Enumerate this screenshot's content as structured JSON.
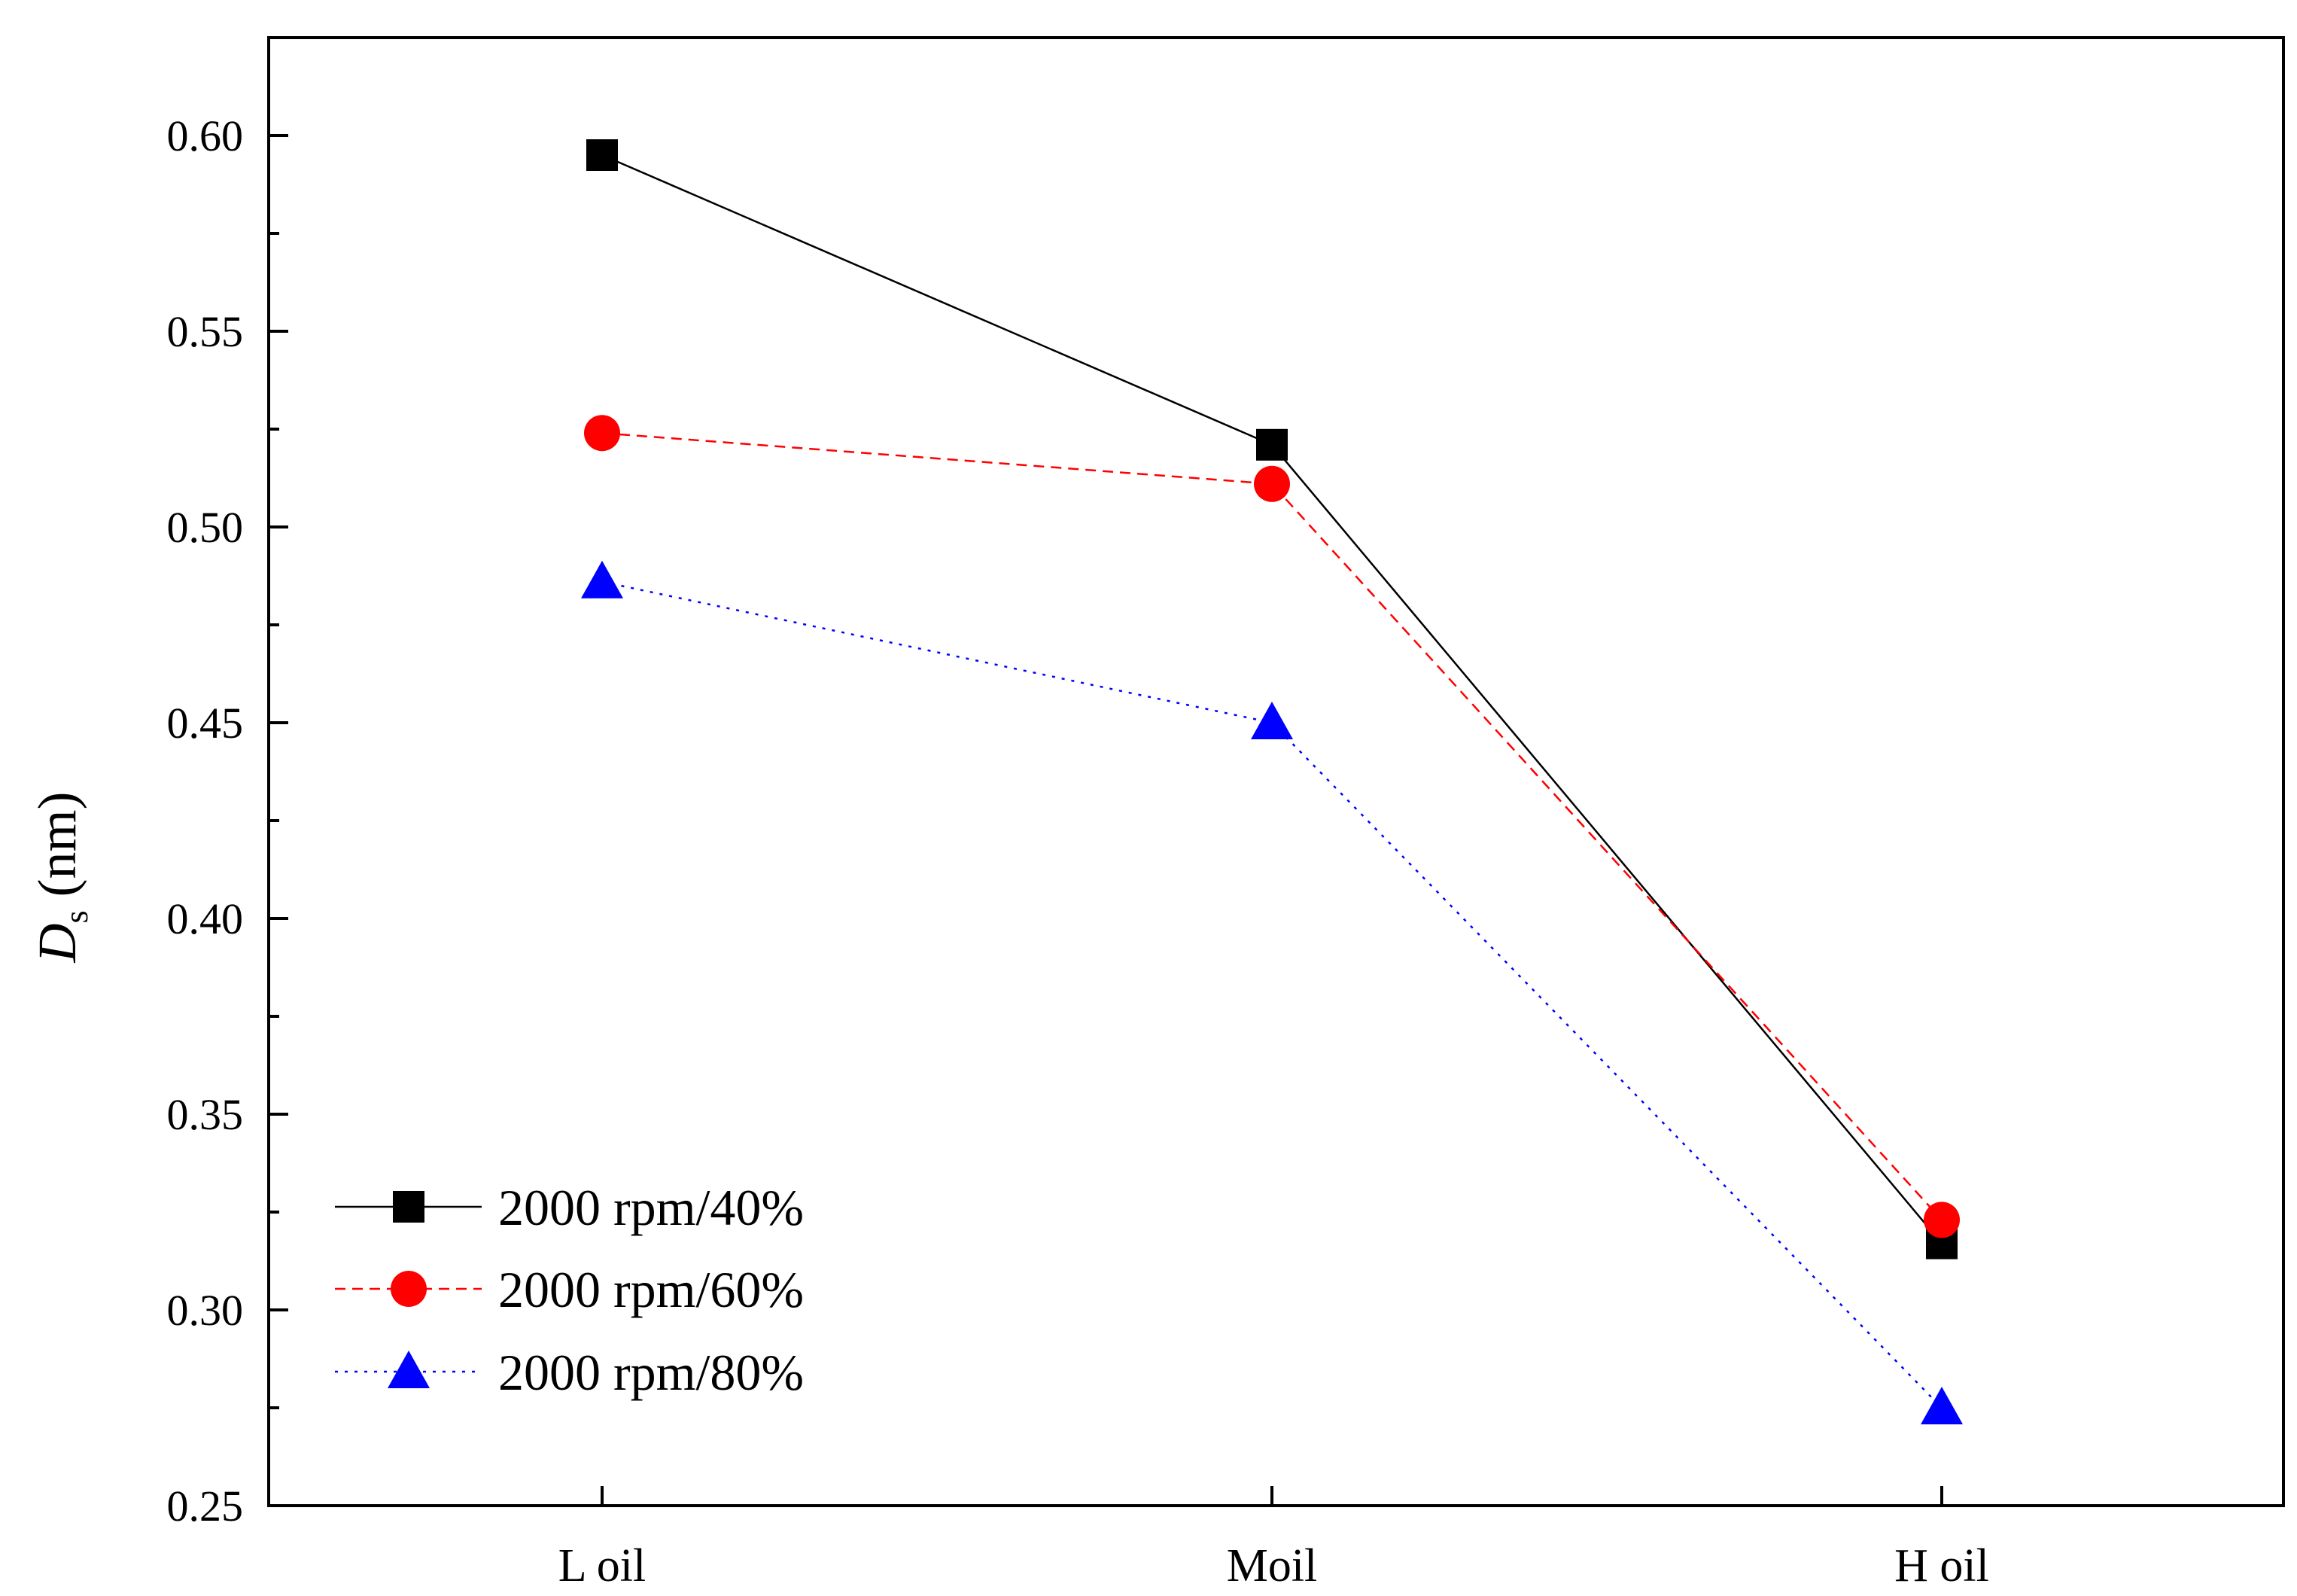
{
  "chart_data": {
    "type": "line",
    "title": "",
    "xlabel": "",
    "ylabel": {
      "main": "D",
      "subscript": "s",
      "unit": "(nm)"
    },
    "categories": [
      "L oil",
      "Moil",
      "H oil"
    ],
    "ylim": [
      0.25,
      0.62
    ],
    "yticks": [
      0.25,
      0.3,
      0.35,
      0.4,
      0.45,
      0.5,
      0.55,
      0.6
    ],
    "ytick_labels": [
      "0.25",
      "0.30",
      "0.35",
      "0.40",
      "0.45",
      "0.50",
      "0.55",
      "0.60"
    ],
    "grid": false,
    "legend_position": "bottom-left",
    "series": [
      {
        "name": "2000 rpm/40%",
        "values": [
          0.595,
          0.521,
          0.317
        ],
        "color": "#000000",
        "marker": "square",
        "line_style": "solid"
      },
      {
        "name": "2000 rpm/60%",
        "values": [
          0.524,
          0.511,
          0.323
        ],
        "color": "#ff0000",
        "marker": "circle",
        "line_style": "dashed"
      },
      {
        "name": "2000 rpm/80%",
        "values": [
          0.486,
          0.45,
          0.275
        ],
        "color": "#0000ff",
        "marker": "triangle",
        "line_style": "dotted"
      }
    ]
  }
}
